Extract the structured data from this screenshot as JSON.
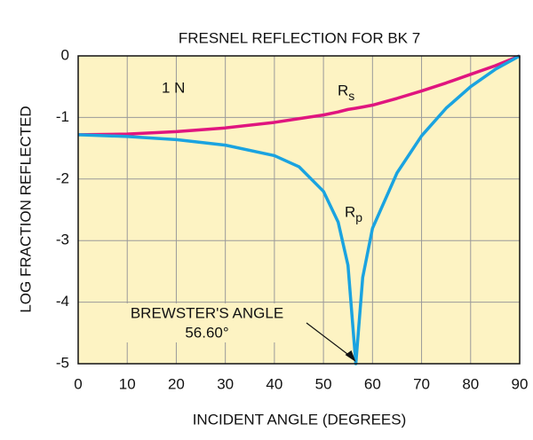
{
  "chart_data": {
    "type": "line",
    "title": "FRESNEL REFLECTION FOR BK 7",
    "x_label": "INCIDENT ANGLE (DEGREES)",
    "y_label": "LOG FRACTION REFLECTED",
    "annotations": [
      "1 N",
      "BREWSTER'S ANGLE",
      "56.60°"
    ],
    "brewster_angle": 56.6,
    "x": [
      0,
      10,
      20,
      30,
      40,
      45,
      50,
      53,
      55,
      56.6,
      58,
      60,
      65,
      70,
      75,
      80,
      85,
      90
    ],
    "series": [
      {
        "name": "Rs",
        "color": "#e0157f",
        "values": [
          -1.28,
          -1.27,
          -1.23,
          -1.17,
          -1.08,
          -1.02,
          -0.96,
          -0.91,
          -0.87,
          -0.85,
          -0.83,
          -0.8,
          -0.69,
          -0.57,
          -0.44,
          -0.3,
          -0.16,
          0
        ]
      },
      {
        "name": "Rp",
        "color": "#1aa3e0",
        "values": [
          -1.28,
          -1.31,
          -1.36,
          -1.45,
          -1.62,
          -1.8,
          -2.2,
          -2.7,
          -3.4,
          -5,
          -3.6,
          -2.8,
          -1.9,
          -1.3,
          -0.85,
          -0.5,
          -0.22,
          0
        ]
      }
    ],
    "xlim": [
      0,
      90
    ],
    "xticks": [
      0,
      10,
      20,
      30,
      40,
      50,
      60,
      70,
      80,
      90
    ],
    "ylim": [
      -5,
      0
    ],
    "yticks": [
      0,
      -1,
      -2,
      -3,
      -4,
      -5
    ],
    "grid": true,
    "background": "#fdf3c3"
  }
}
